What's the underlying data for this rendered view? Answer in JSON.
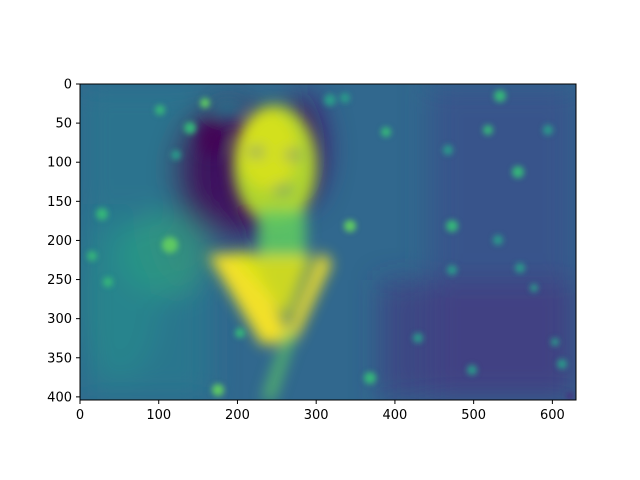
{
  "chart_data": {
    "type": "heatmap",
    "title": "",
    "xlabel": "",
    "ylabel": "",
    "colormap": "viridis",
    "image_width": 630,
    "image_height": 404,
    "xlim": [
      0,
      630
    ],
    "ylim": [
      404,
      0
    ],
    "xticks": [
      0,
      100,
      200,
      300,
      400,
      500,
      600
    ],
    "yticks": [
      0,
      50,
      100,
      150,
      200,
      250,
      300,
      350,
      400
    ],
    "xtick_labels": [
      "0",
      "100",
      "200",
      "300",
      "400",
      "500",
      "600"
    ],
    "ytick_labels": [
      "0",
      "50",
      "100",
      "150",
      "200",
      "250",
      "300",
      "350",
      "400"
    ],
    "grid": false
  },
  "colors": {
    "viridis_low": "#440154",
    "viridis_dark": "#3b528b",
    "viridis_mid": "#21918c",
    "viridis_high": "#5ec962",
    "viridis_top": "#fde725"
  }
}
